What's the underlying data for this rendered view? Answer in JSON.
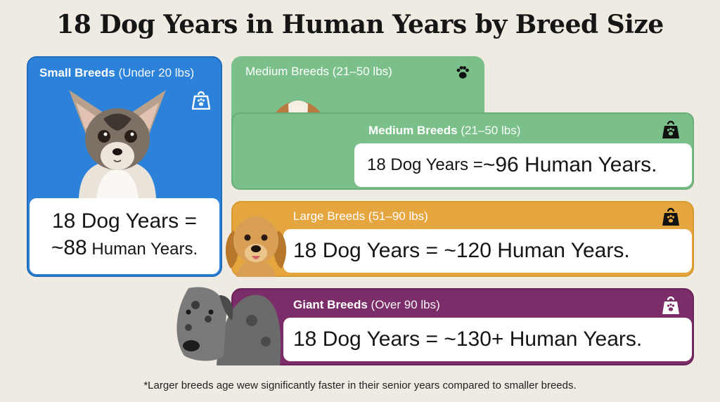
{
  "title": "18 Dog Years in Human Years by Breed Size",
  "small": {
    "label_bold": "Small Breeds",
    "label_rest": " (Under 20 lbs)",
    "result_line1": "18 Dog Years =",
    "result_line2a": "~88",
    "result_line2b": " Human Years."
  },
  "medium_top": {
    "label": "Medium Breeds (21–50 lbs)"
  },
  "medium": {
    "label_bold": "Medium Breeds",
    "label_rest": " (21–50 lbs)",
    "result_a": "18 Dog Years = ",
    "result_b": "~96 Human Years."
  },
  "large": {
    "label": "Large Breeds (51–90 lbs)",
    "result": "18 Dog Years = ~120 Human Years."
  },
  "giant": {
    "label_bold": "Giant Breeds",
    "label_rest": " (Over 90 lbs)",
    "result": "18 Dog Years = ~130+ Human Years."
  },
  "footnote": "*Larger breeds age wew significantly faster in their senior years compared to smaller breeds.",
  "colors": {
    "small": "#2c82d8",
    "medium": "#7bbf8a",
    "large": "#e5a63f",
    "giant": "#7a2d68"
  },
  "icons": [
    "weight-paw-icon"
  ]
}
